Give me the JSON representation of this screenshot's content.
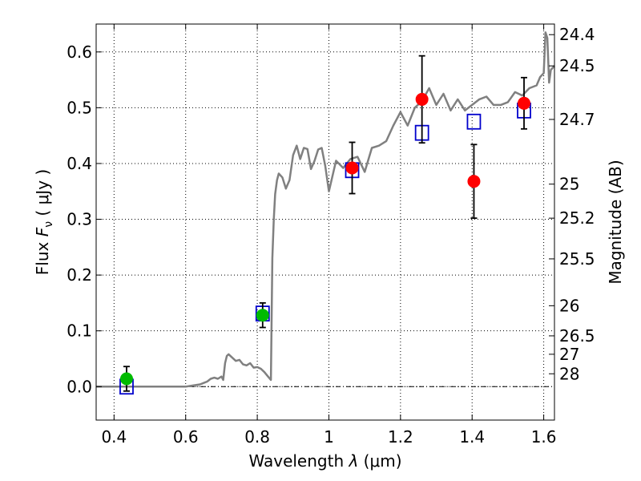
{
  "chart_data": {
    "type": "scatter",
    "xlabel_text": "Wavelength  ",
    "xlabel_symbol": "λ",
    "xlabel_unit": " (μm)",
    "ylabel_text": "Flux  ",
    "ylabel_symbol": "F",
    "ylabel_subscript": "ν",
    "ylabel_unit": "  ( μJy )",
    "y2label": "Magnitude (AB)",
    "xlim": [
      0.35,
      1.63
    ],
    "ylim": [
      -0.06,
      0.65
    ],
    "grid": true,
    "x_ticks": [
      0.4,
      0.6,
      0.8,
      1.0,
      1.2,
      1.4,
      1.6
    ],
    "x_tick_labels": [
      "0.4",
      "0.6",
      "0.8",
      "1",
      "1.2",
      "1.4",
      "1.6"
    ],
    "y_ticks": [
      0.0,
      0.1,
      0.2,
      0.3,
      0.4,
      0.5,
      0.6
    ],
    "y_tick_labels": [
      "0.0",
      "0.1",
      "0.2",
      "0.3",
      "0.4",
      "0.5",
      "0.6"
    ],
    "y2_ticks": [
      {
        "label": "24.4",
        "flux": 0.631
      },
      {
        "label": "24.5",
        "flux": 0.575
      },
      {
        "label": "24.7",
        "flux": 0.479
      },
      {
        "label": "25",
        "flux": 0.363
      },
      {
        "label": "25.2",
        "flux": 0.302
      },
      {
        "label": "25.5",
        "flux": 0.229
      },
      {
        "label": "26",
        "flux": 0.145
      },
      {
        "label": "26.5",
        "flux": 0.091
      },
      {
        "label": "27",
        "flux": 0.058
      },
      {
        "label": "28",
        "flux": 0.023
      }
    ],
    "series": [
      {
        "kind": "line",
        "color": "#808080",
        "x": [
          0.35,
          0.6,
          0.62,
          0.64,
          0.66,
          0.67,
          0.68,
          0.69,
          0.7,
          0.705,
          0.71,
          0.715,
          0.72,
          0.73,
          0.74,
          0.75,
          0.76,
          0.77,
          0.78,
          0.79,
          0.8,
          0.81,
          0.82,
          0.83,
          0.838,
          0.842,
          0.846,
          0.85,
          0.855,
          0.86,
          0.87,
          0.88,
          0.89,
          0.9,
          0.91,
          0.92,
          0.93,
          0.94,
          0.95,
          0.96,
          0.97,
          0.98,
          0.99,
          1.0,
          1.02,
          1.04,
          1.06,
          1.08,
          1.1,
          1.12,
          1.14,
          1.16,
          1.18,
          1.2,
          1.22,
          1.24,
          1.26,
          1.28,
          1.3,
          1.32,
          1.34,
          1.36,
          1.38,
          1.4,
          1.42,
          1.44,
          1.46,
          1.48,
          1.5,
          1.52,
          1.54,
          1.56,
          1.58,
          1.59,
          1.6,
          1.605,
          1.61,
          1.615,
          1.62,
          1.63
        ],
        "y": [
          0.0,
          0.0,
          0.002,
          0.004,
          0.009,
          0.014,
          0.016,
          0.014,
          0.018,
          0.012,
          0.042,
          0.055,
          0.058,
          0.052,
          0.046,
          0.048,
          0.04,
          0.038,
          0.042,
          0.034,
          0.035,
          0.032,
          0.026,
          0.018,
          0.012,
          0.23,
          0.3,
          0.345,
          0.37,
          0.382,
          0.375,
          0.355,
          0.37,
          0.415,
          0.432,
          0.408,
          0.428,
          0.426,
          0.39,
          0.405,
          0.425,
          0.428,
          0.395,
          0.35,
          0.405,
          0.392,
          0.408,
          0.412,
          0.385,
          0.428,
          0.432,
          0.44,
          0.468,
          0.492,
          0.468,
          0.5,
          0.512,
          0.535,
          0.505,
          0.525,
          0.495,
          0.515,
          0.495,
          0.505,
          0.515,
          0.52,
          0.505,
          0.505,
          0.51,
          0.528,
          0.522,
          0.535,
          0.54,
          0.555,
          0.562,
          0.635,
          0.625,
          0.545,
          0.568,
          0.575
        ]
      },
      {
        "kind": "points",
        "marker": "circle",
        "color": "#00bb00",
        "x": [
          0.435,
          0.815
        ],
        "y": [
          0.014,
          0.128
        ],
        "yerr": [
          0.022,
          0.022
        ]
      },
      {
        "kind": "points",
        "marker": "circle",
        "color": "#ff0000",
        "x": [
          1.065,
          1.26,
          1.405,
          1.545
        ],
        "y": [
          0.392,
          0.515,
          0.368,
          0.508
        ],
        "yerr": [
          0.046,
          0.078,
          0.066,
          0.046
        ]
      },
      {
        "kind": "points",
        "marker": "square",
        "color": "#0000cc",
        "x": [
          0.435,
          0.815,
          1.065,
          1.26,
          1.405,
          1.545
        ],
        "y": [
          0.0,
          0.131,
          0.388,
          0.455,
          0.475,
          0.495
        ]
      }
    ],
    "zero_line": 0.0
  }
}
